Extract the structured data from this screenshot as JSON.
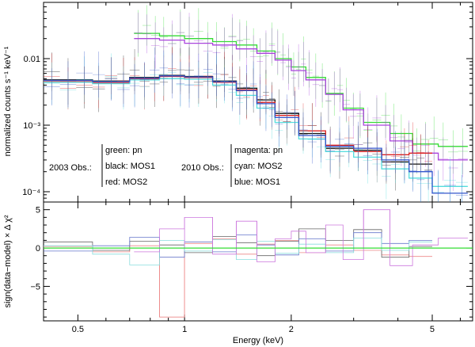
{
  "chart_data": [
    {
      "panel": "top",
      "type": "line",
      "xscale": "log",
      "yscale": "log",
      "xlim": [
        0.4,
        6.5
      ],
      "ylim": [
        7e-05,
        0.07
      ],
      "ylabel": "normalized counts s⁻¹ keV⁻¹",
      "ytick_labels": [
        {
          "value": 0.01,
          "label": "0.01"
        },
        {
          "value": 0.001,
          "label": "10⁻³"
        },
        {
          "value": 0.0001,
          "label": "10⁻⁴"
        }
      ],
      "legend": {
        "group_2003": {
          "label": "2003 Obs.:",
          "entries": [
            "green: pn",
            "black: MOS1",
            "red: MOS2"
          ]
        },
        "group_2010": {
          "label": "2010 Obs.:",
          "entries": [
            "magenta: pn",
            "cyan: MOS2",
            "blue: MOS1"
          ]
        }
      },
      "series": [
        {
          "name": "2003 pn",
          "color": "#33dd33",
          "edges": [
            0.72,
            0.85,
            1.0,
            1.2,
            1.4,
            1.6,
            1.8,
            2.0,
            2.2,
            2.5,
            2.8,
            3.2,
            3.8,
            4.4,
            5.2,
            6.3
          ],
          "values": [
            0.024,
            0.022,
            0.02,
            0.018,
            0.016,
            0.013,
            0.01,
            0.0075,
            0.0052,
            0.003,
            0.0018,
            0.0011,
            0.00075,
            0.00052,
            0.00048
          ]
        },
        {
          "name": "2010 pn",
          "color": "#aa44dd",
          "edges": [
            0.72,
            0.85,
            1.0,
            1.2,
            1.4,
            1.6,
            1.8,
            2.0,
            2.2,
            2.5,
            2.8,
            3.2,
            3.8,
            4.4,
            5.2,
            6.3
          ],
          "values": [
            0.02,
            0.019,
            0.017,
            0.016,
            0.014,
            0.012,
            0.0095,
            0.0066,
            0.0048,
            0.0029,
            0.0017,
            0.001,
            0.00058,
            0.00038,
            0.0003
          ]
        },
        {
          "name": "2003 MOS1",
          "color": "#111111",
          "edges": [
            0.4,
            0.55,
            0.7,
            0.85,
            1.0,
            1.2,
            1.4,
            1.6,
            1.8,
            2.1,
            2.5,
            3.0,
            3.6,
            4.3,
            5.0
          ],
          "values": [
            0.0048,
            0.0046,
            0.0052,
            0.0056,
            0.0054,
            0.0046,
            0.0036,
            0.0024,
            0.0015,
            0.00075,
            0.00045,
            0.00042,
            0.00028,
            0.00026
          ]
        },
        {
          "name": "2003 MOS2",
          "color": "#dd2222",
          "edges": [
            0.4,
            0.55,
            0.7,
            0.85,
            1.0,
            1.2,
            1.4,
            1.6,
            1.8,
            2.1,
            2.5,
            3.0,
            3.6,
            4.3,
            5.0
          ],
          "values": [
            0.0045,
            0.0043,
            0.005,
            0.0054,
            0.0052,
            0.0044,
            0.0034,
            0.0022,
            0.0014,
            0.00082,
            0.0005,
            0.0004,
            0.00036,
            0.00038
          ]
        },
        {
          "name": "2010 MOS2",
          "color": "#55dddd",
          "edges": [
            0.4,
            0.55,
            0.7,
            0.85,
            1.0,
            1.2,
            1.4,
            1.6,
            1.8,
            2.1,
            2.5,
            3.0,
            3.6,
            4.3,
            5.0,
            6.3
          ],
          "values": [
            0.0044,
            0.0042,
            0.0048,
            0.005,
            0.0049,
            0.004,
            0.0028,
            0.0018,
            0.0011,
            0.00062,
            0.0004,
            0.00033,
            0.00022,
            0.00016,
            0.00012
          ]
        },
        {
          "name": "2010 MOS1",
          "color": "#3355cc",
          "edges": [
            0.4,
            0.55,
            0.7,
            0.85,
            1.0,
            1.2,
            1.4,
            1.6,
            1.8,
            2.1,
            2.5,
            3.0,
            3.6,
            4.3,
            5.0,
            6.3
          ],
          "values": [
            0.0047,
            0.0045,
            0.0051,
            0.0055,
            0.0053,
            0.0045,
            0.0033,
            0.0021,
            0.0013,
            0.0007,
            0.00048,
            0.00045,
            0.0003,
            0.0002,
            9.5e-05
          ]
        }
      ]
    },
    {
      "panel": "bottom",
      "type": "line",
      "xscale": "log",
      "xlim": [
        0.4,
        6.5
      ],
      "ylim": [
        -9.5,
        6
      ],
      "xlabel": "Energy (keV)",
      "ylabel": "sign(data−model) × Δ χ²",
      "xtick_labels": [
        {
          "value": 0.5,
          "label": "0.5"
        },
        {
          "value": 1,
          "label": "1"
        },
        {
          "value": 2,
          "label": "2"
        },
        {
          "value": 5,
          "label": "5"
        }
      ],
      "ytick_labels": [
        {
          "value": 5,
          "label": "5"
        },
        {
          "value": 0,
          "label": "0"
        },
        {
          "value": -5,
          "label": "−5"
        }
      ],
      "series": [
        {
          "name": "2003 MOS2",
          "color": "#ee8888",
          "edges": [
            0.4,
            0.55,
            0.7,
            0.85,
            1.0,
            1.2,
            1.4,
            1.6,
            1.8,
            2.1,
            2.5,
            3.0,
            3.6,
            4.3,
            5.0
          ],
          "values": [
            0.2,
            -0.5,
            0.3,
            -9.0,
            0.6,
            1.2,
            -0.8,
            0.5,
            1.0,
            -0.6,
            0.4,
            -0.3,
            -0.9,
            -1.1
          ]
        },
        {
          "name": "2003 MOS1",
          "color": "#666666",
          "edges": [
            0.4,
            0.55,
            0.7,
            0.85,
            1.0,
            1.2,
            1.4,
            1.6,
            1.8,
            2.1,
            2.5,
            3.0,
            3.6,
            4.3,
            5.0
          ],
          "values": [
            0.8,
            -0.3,
            0.9,
            0.4,
            -0.6,
            1.5,
            0.7,
            -1.0,
            0.9,
            2.5,
            1.0,
            2.4,
            -1.2,
            0.2
          ]
        },
        {
          "name": "2010 MOS1",
          "color": "#6677cc",
          "edges": [
            0.4,
            0.55,
            0.7,
            0.85,
            1.0,
            1.2,
            1.4,
            1.6,
            1.8,
            2.1,
            2.5,
            3.0,
            3.6,
            4.3,
            5.0
          ],
          "values": [
            -0.4,
            0.3,
            1.4,
            -1.2,
            0.8,
            -0.5,
            1.7,
            0.4,
            -0.9,
            1.2,
            -0.4,
            2.0,
            0.6,
            1.0
          ]
        },
        {
          "name": "2010 MOS2",
          "color": "#88dddd",
          "edges": [
            0.4,
            0.55,
            0.7,
            0.85,
            1.0,
            1.2,
            1.4,
            1.6,
            1.8,
            2.1,
            2.5,
            3.0,
            3.6,
            4.3,
            5.0
          ],
          "values": [
            0.3,
            -0.8,
            -2.2,
            1.0,
            -0.4,
            1.1,
            -1.5,
            0.9,
            -0.7,
            0.5,
            -0.6,
            1.3,
            -0.3,
            0.8
          ]
        },
        {
          "name": "2010 pn",
          "color": "#cc77dd",
          "edges": [
            0.72,
            0.85,
            1.0,
            1.2,
            1.4,
            1.6,
            1.8,
            2.0,
            2.2,
            2.5,
            2.8,
            3.2,
            3.8,
            4.4,
            5.2,
            6.3
          ],
          "values": [
            -0.5,
            2.5,
            4.0,
            -0.8,
            3.5,
            -1.8,
            1.2,
            2.2,
            -0.6,
            3.0,
            -1.5,
            5.0,
            -2.3,
            0.4,
            1.3
          ]
        },
        {
          "name": "2003 pn",
          "color": "#33dd33",
          "edges": [
            0.4,
            6.5
          ],
          "values": [
            0.0
          ]
        }
      ]
    }
  ]
}
